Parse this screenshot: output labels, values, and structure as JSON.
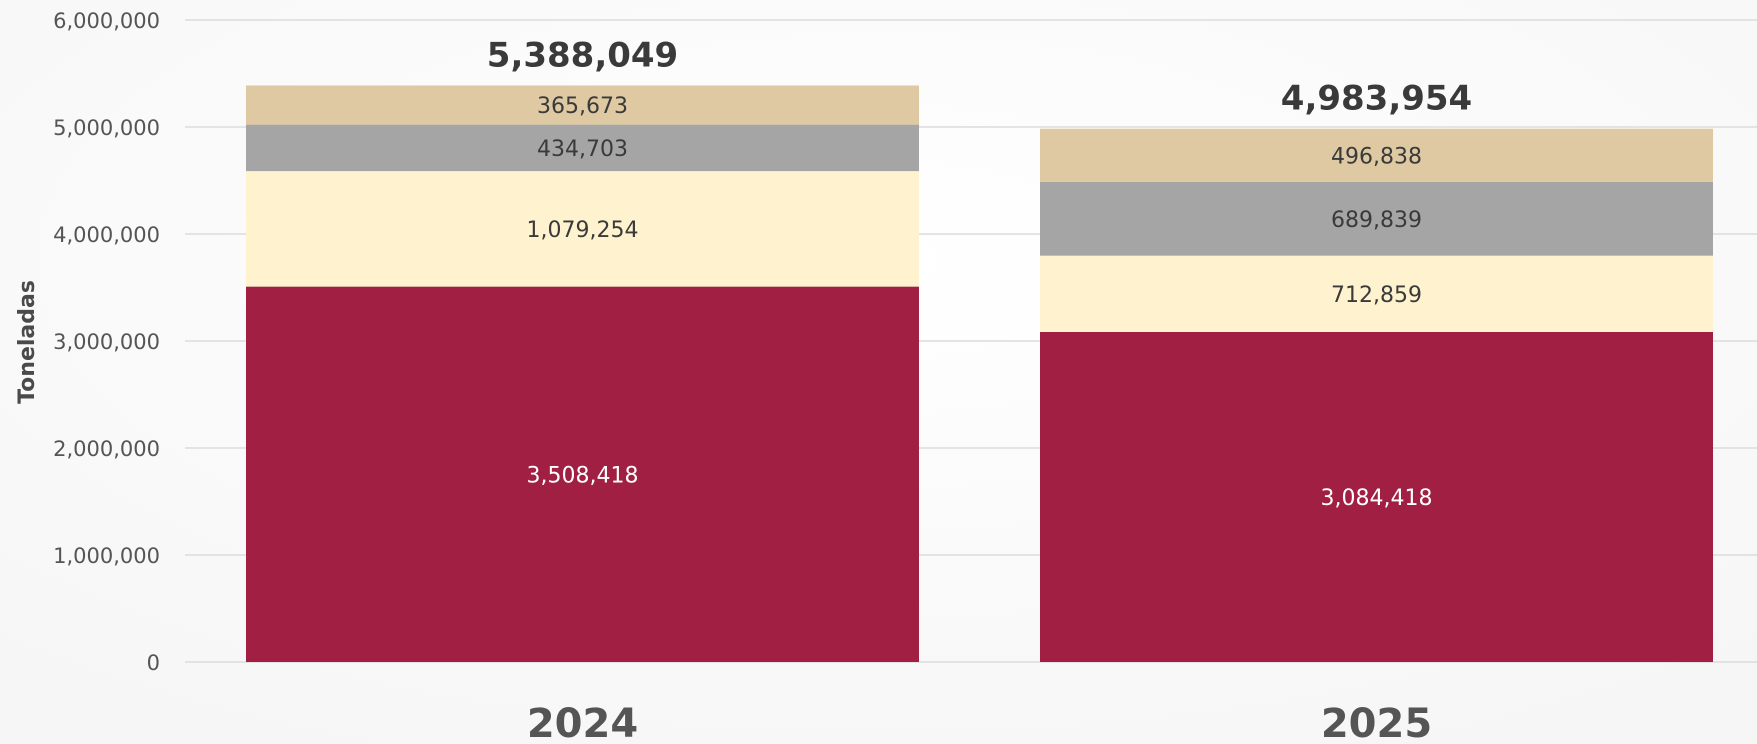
{
  "chart_data": {
    "type": "bar",
    "stacked": true,
    "categories": [
      "2024",
      "2025"
    ],
    "ylabel": "Toneladas",
    "ylim": [
      0,
      6000000
    ],
    "yticks": [
      "0",
      "1,000,000",
      "2,000,000",
      "3,000,000",
      "4,000,000",
      "5,000,000",
      "6,000,000"
    ],
    "ytick_values": [
      0,
      1000000,
      2000000,
      3000000,
      4000000,
      5000000,
      6000000
    ],
    "grid": true,
    "series": [
      {
        "values": [
          3508418,
          3084418
        ],
        "labels": [
          "3,508,418",
          "3,084,418"
        ],
        "color": "#a01f42",
        "label_color": "#ffffff"
      },
      {
        "values": [
          1079254,
          712859
        ],
        "labels": [
          "1,079,254",
          "712,859"
        ],
        "color": "#fff3cf",
        "label_color": "#3a3a3a"
      },
      {
        "values": [
          434703,
          689839
        ],
        "labels": [
          "434,703",
          "689,839"
        ],
        "color": "#a5a5a5",
        "label_color": "#3a3a3a"
      },
      {
        "values": [
          365673,
          496838
        ],
        "labels": [
          "365,673",
          "496,838"
        ],
        "color": "#dfc9a3",
        "label_color": "#3a3a3a"
      }
    ],
    "totals": [
      "5,388,049",
      "4,983,954"
    ]
  }
}
